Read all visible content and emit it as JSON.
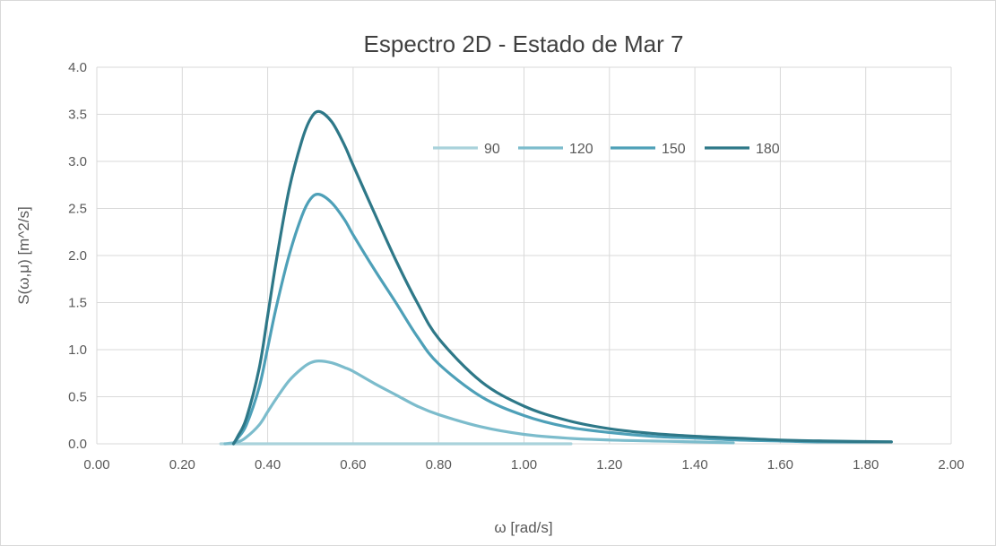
{
  "chart_data": {
    "type": "line",
    "title": "Espectro 2D - Estado de Mar 7",
    "xlabel": "ω [rad/s]",
    "ylabel": "S(ω,μ) [m^2/s]",
    "xlim": [
      0,
      2
    ],
    "ylim": [
      0,
      4
    ],
    "x_ticks": [
      "0.00",
      "0.20",
      "0.40",
      "0.60",
      "0.80",
      "1.00",
      "1.20",
      "1.40",
      "1.60",
      "1.80",
      "2.00"
    ],
    "y_ticks": [
      "0.0",
      "0.5",
      "1.0",
      "1.5",
      "2.0",
      "2.5",
      "3.0",
      "3.5",
      "4.0"
    ],
    "grid": true,
    "legend_position": "top-right",
    "series": [
      {
        "name": "90",
        "color": "#a9d2db",
        "x": [
          0.29,
          0.4,
          0.5,
          0.6,
          0.8,
          1.0,
          1.11
        ],
        "y": [
          0,
          0,
          0,
          0,
          0,
          0,
          0
        ]
      },
      {
        "name": "120",
        "color": "#7cbccc",
        "x": [
          0.3,
          0.33,
          0.35,
          0.38,
          0.4,
          0.42,
          0.45,
          0.48,
          0.5,
          0.52,
          0.55,
          0.58,
          0.6,
          0.65,
          0.7,
          0.75,
          0.8,
          0.9,
          1.0,
          1.1,
          1.2,
          1.3,
          1.4,
          1.49
        ],
        "y": [
          0,
          0.02,
          0.07,
          0.2,
          0.34,
          0.48,
          0.67,
          0.8,
          0.86,
          0.88,
          0.86,
          0.81,
          0.77,
          0.64,
          0.52,
          0.4,
          0.31,
          0.18,
          0.1,
          0.06,
          0.04,
          0.03,
          0.02,
          0.01
        ]
      },
      {
        "name": "150",
        "color": "#4ea0b8",
        "x": [
          0.32,
          0.33,
          0.35,
          0.38,
          0.4,
          0.42,
          0.45,
          0.48,
          0.5,
          0.52,
          0.55,
          0.58,
          0.6,
          0.65,
          0.7,
          0.75,
          0.8,
          0.9,
          1.0,
          1.1,
          1.2,
          1.3,
          1.4,
          1.5,
          1.6,
          1.7,
          1.86
        ],
        "y": [
          0,
          0.06,
          0.2,
          0.6,
          1.02,
          1.45,
          2.0,
          2.42,
          2.6,
          2.65,
          2.56,
          2.38,
          2.22,
          1.85,
          1.5,
          1.14,
          0.85,
          0.5,
          0.3,
          0.18,
          0.12,
          0.08,
          0.06,
          0.04,
          0.03,
          0.02,
          0.02
        ]
      },
      {
        "name": "180",
        "color": "#2e7888",
        "x": [
          0.32,
          0.33,
          0.35,
          0.38,
          0.4,
          0.42,
          0.45,
          0.48,
          0.5,
          0.52,
          0.55,
          0.58,
          0.6,
          0.65,
          0.7,
          0.75,
          0.8,
          0.9,
          1.0,
          1.1,
          1.2,
          1.3,
          1.4,
          1.5,
          1.6,
          1.7,
          1.86
        ],
        "y": [
          0,
          0.08,
          0.27,
          0.8,
          1.36,
          1.94,
          2.7,
          3.22,
          3.45,
          3.53,
          3.42,
          3.17,
          2.96,
          2.45,
          1.95,
          1.5,
          1.12,
          0.66,
          0.4,
          0.25,
          0.16,
          0.11,
          0.08,
          0.06,
          0.04,
          0.03,
          0.02
        ]
      }
    ]
  }
}
